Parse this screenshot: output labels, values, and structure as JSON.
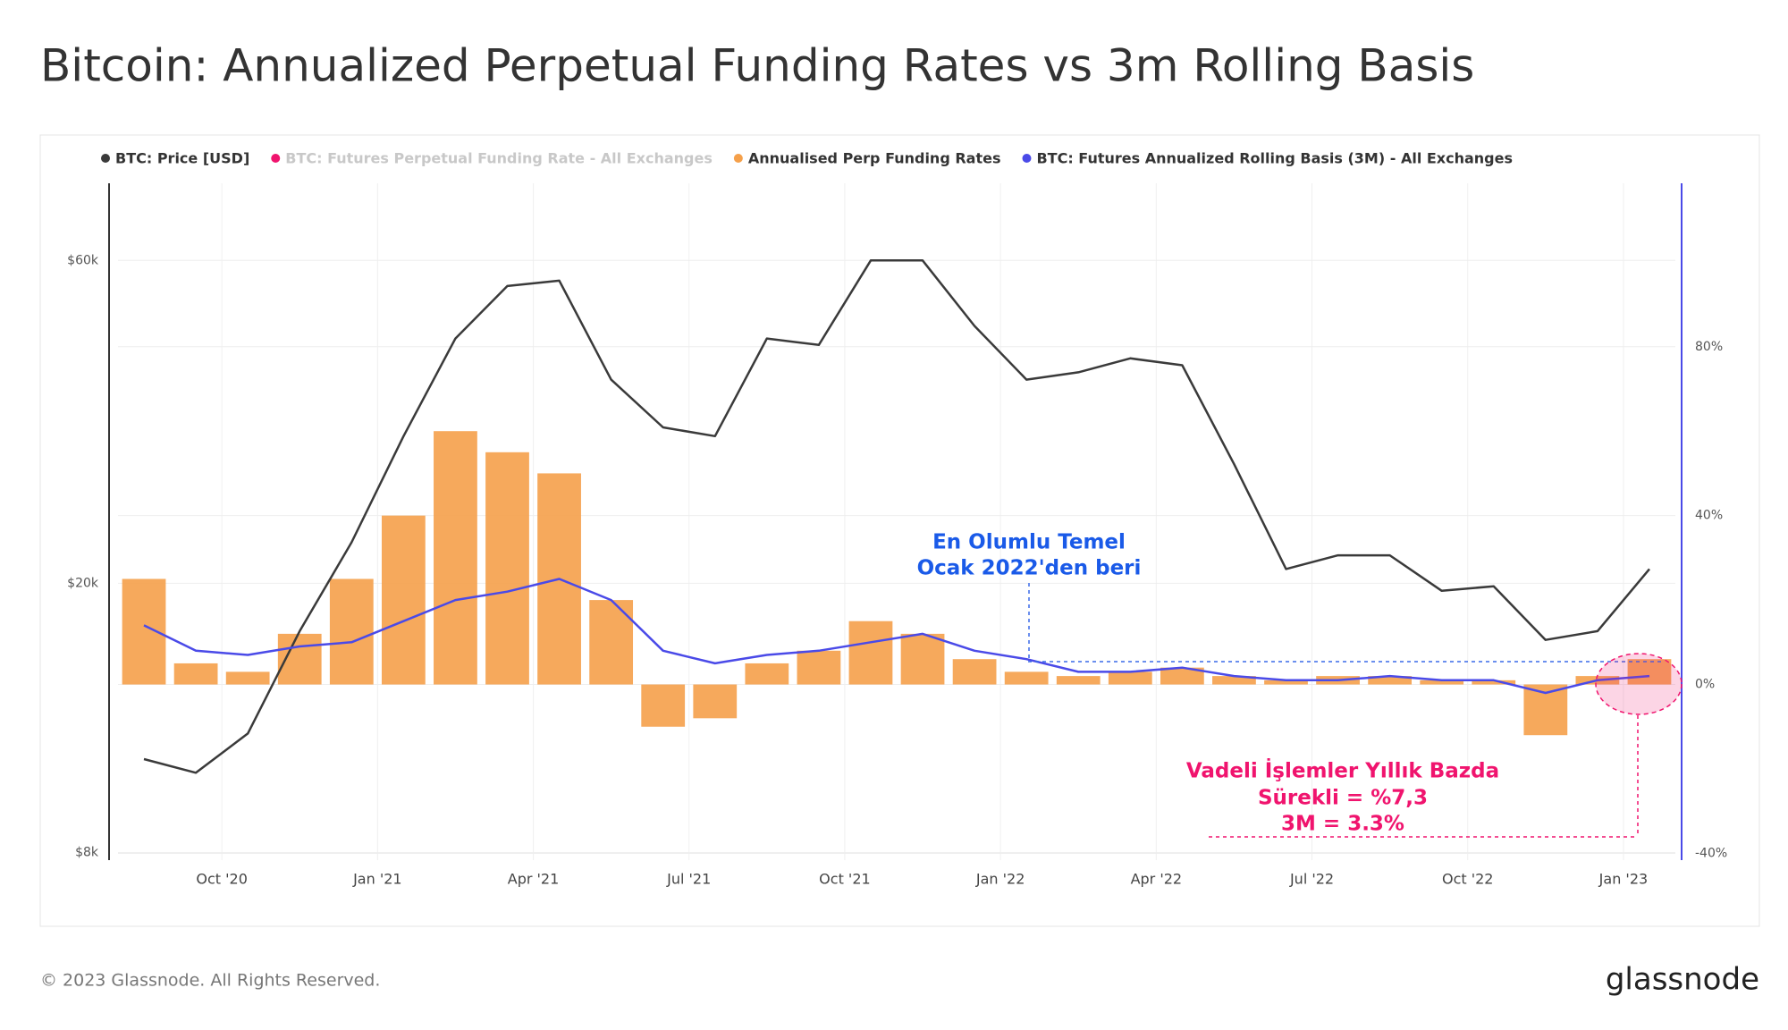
{
  "chart_data": {
    "type": "line_bar_dual",
    "title": "Bitcoin: Annualized Perpetual Funding Rates vs 3m Rolling Basis",
    "footer": "© 2023 Glassnode. All Rights Reserved.",
    "brand": "glassnode",
    "annotations": [
      "En Olumlu Temel",
      "Ocak 2022'den beri",
      "Vadeli İşlemler Yıllık Bazda",
      "Sürekli = %7,3",
      "3M = 3.3%"
    ],
    "x": [
      "2020-08",
      "2020-09",
      "2020-10",
      "2020-11",
      "2020-12",
      "2021-01",
      "2021-02",
      "2021-03",
      "2021-04",
      "2021-05",
      "2021-06",
      "2021-07",
      "2021-08",
      "2021-09",
      "2021-10",
      "2021-11",
      "2021-12",
      "2022-01",
      "2022-02",
      "2022-03",
      "2022-04",
      "2022-05",
      "2022-06",
      "2022-07",
      "2022-08",
      "2022-09",
      "2022-10",
      "2022-11",
      "2022-12",
      "2023-01"
    ],
    "xlim": [
      "2020-08",
      "2023-02"
    ],
    "xticks": [
      {
        "value": "2020-10",
        "label": "Oct '20"
      },
      {
        "value": "2021-01",
        "label": "Jan '21"
      },
      {
        "value": "2021-04",
        "label": "Apr '21"
      },
      {
        "value": "2021-07",
        "label": "Jul '21"
      },
      {
        "value": "2021-10",
        "label": "Oct '21"
      },
      {
        "value": "2022-01",
        "label": "Jan '22"
      },
      {
        "value": "2022-04",
        "label": "Apr '22"
      },
      {
        "value": "2022-07",
        "label": "Jul '22"
      },
      {
        "value": "2022-10",
        "label": "Oct '22"
      },
      {
        "value": "2023-01",
        "label": "Jan '23"
      }
    ],
    "ylim": [
      7800,
      78000
    ],
    "log_y": true,
    "yticks": [
      {
        "value": 8000,
        "label": "$8k"
      },
      {
        "value": 20000,
        "label": "$20k"
      },
      {
        "value": 60000,
        "label": "$60k"
      }
    ],
    "y2lim": [
      -41.6,
      118.7
    ],
    "y2ticks": [
      {
        "value": -40,
        "label": "-40%"
      },
      {
        "value": 0,
        "label": "0%"
      },
      {
        "value": 40,
        "label": "40%"
      },
      {
        "value": 80,
        "label": "80%"
      }
    ],
    "grid": true,
    "series": [
      {
        "name": "BTC: Price [USD]",
        "color": "#3a3a3a",
        "kind": "line",
        "axis": "y",
        "values": [
          11000,
          10500,
          12000,
          17000,
          23000,
          33000,
          46000,
          55000,
          56000,
          40000,
          34000,
          33000,
          46000,
          45000,
          60000,
          60000,
          48000,
          40000,
          41000,
          43000,
          42000,
          30000,
          21000,
          22000,
          22000,
          19500,
          19800,
          16500,
          17000,
          21000
        ]
      },
      {
        "name": "BTC: Futures Perpetual Funding Rate - All Exchanges",
        "color": "#f0146e",
        "hidden": true
      },
      {
        "name": "Annualised Perp Funding Rates",
        "color": "#f5a04a",
        "kind": "bar",
        "axis": "y2",
        "values": [
          25,
          5,
          3,
          12,
          25,
          40,
          60,
          55,
          50,
          20,
          -10,
          -8,
          5,
          8,
          15,
          12,
          6,
          3,
          2,
          3,
          4,
          2,
          1,
          2,
          2,
          1,
          1,
          -12,
          2,
          6
        ]
      },
      {
        "name": "BTC: Futures Annualized Rolling Basis (3M) - All Exchanges",
        "color": "#4a4ae8",
        "kind": "line",
        "axis": "y2",
        "values": [
          14,
          8,
          7,
          9,
          10,
          15,
          20,
          22,
          25,
          20,
          8,
          5,
          7,
          8,
          10,
          12,
          8,
          6,
          3,
          3,
          4,
          2,
          1,
          1,
          2,
          1,
          1,
          -2,
          1,
          2
        ]
      }
    ]
  }
}
